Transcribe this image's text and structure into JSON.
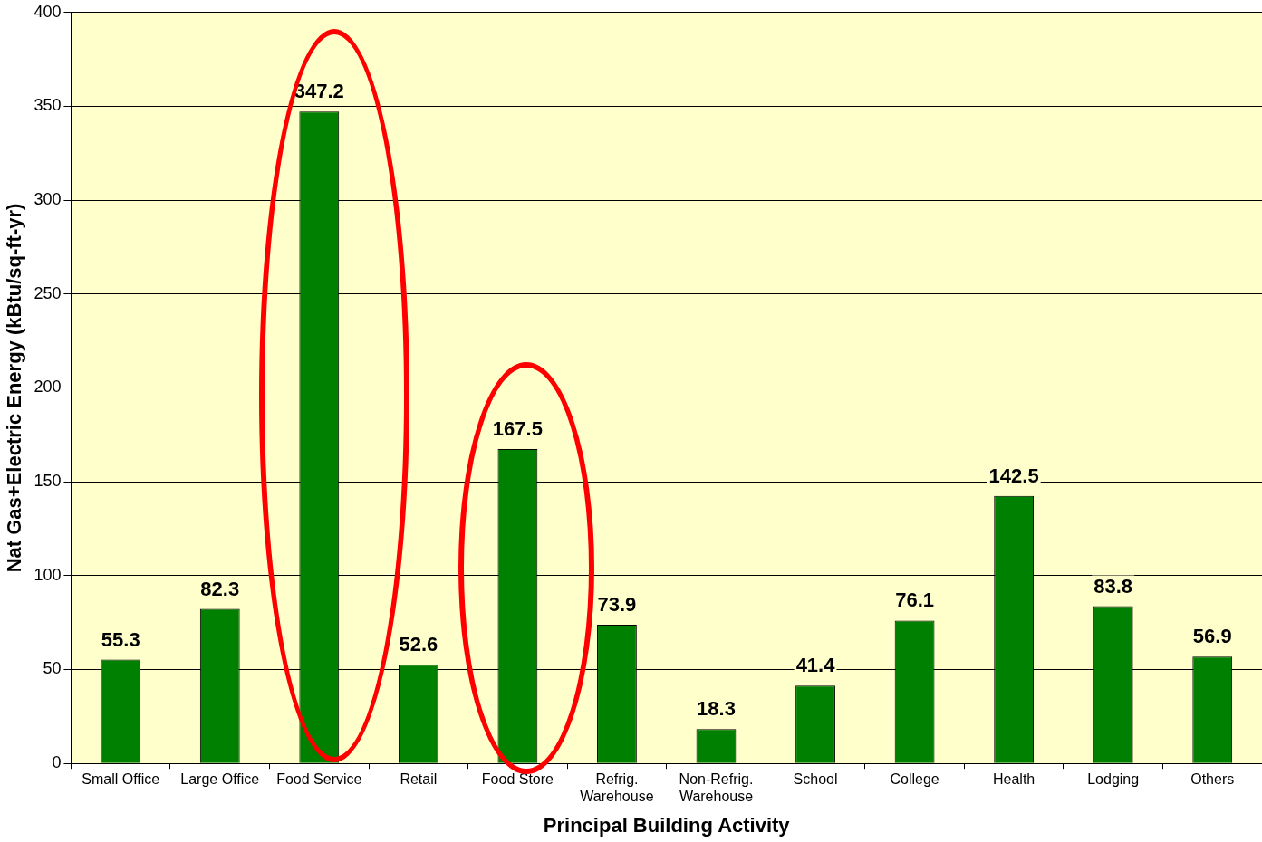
{
  "chart_data": {
    "type": "bar",
    "xlabel": "Principal Building Activity",
    "ylabel": "Nat Gas+Electric Energy (kBtu/sq-ft-yr)",
    "categories": [
      "Small Office",
      "Large Office",
      "Food Service",
      "Retail",
      "Food Store",
      "Refrig. Warehouse",
      "Non-Refrig. Warehouse",
      "School",
      "College",
      "Health",
      "Lodging",
      "Others"
    ],
    "values": [
      55.3,
      82.3,
      347.2,
      52.6,
      167.5,
      73.9,
      18.3,
      41.4,
      76.1,
      142.5,
      83.8,
      56.9
    ],
    "color": "#008000",
    "ylim": [
      0,
      400
    ],
    "yticks": [
      0,
      50,
      100,
      150,
      200,
      250,
      300,
      350,
      400
    ],
    "grid": "y",
    "data_labels": true,
    "legend": false
  }
}
